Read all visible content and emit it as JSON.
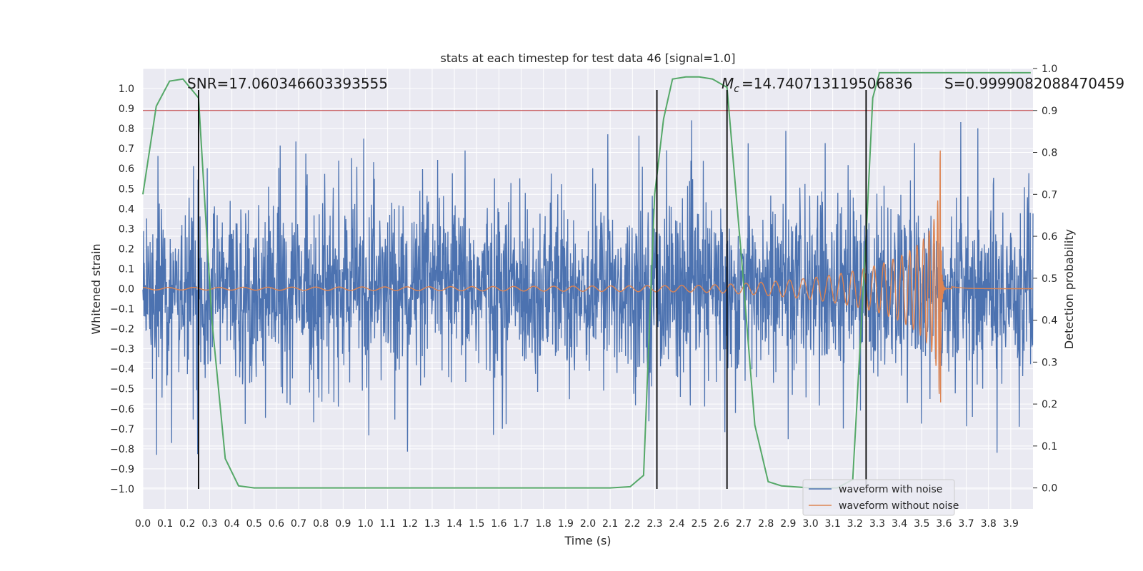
{
  "chart_data": {
    "type": "line",
    "title": "stats at each timestep for test data 46 [signal=1.0]",
    "xlabel": "Time (s)",
    "ylabel_left": "Whitened strain",
    "ylabel_right": "Detection probability",
    "xlim": [
      0.0,
      4.0
    ],
    "ylim_left": [
      -1.1,
      1.1
    ],
    "ylim_right": [
      -0.05,
      1.0
    ],
    "grid": true,
    "x_ticks": [
      "0.0",
      "0.1",
      "0.2",
      "0.3",
      "0.4",
      "0.5",
      "0.6",
      "0.7",
      "0.8",
      "0.9",
      "1.0",
      "1.1",
      "1.2",
      "1.3",
      "1.4",
      "1.5",
      "1.6",
      "1.7",
      "1.8",
      "1.9",
      "2.0",
      "2.1",
      "2.2",
      "2.3",
      "2.4",
      "2.5",
      "2.6",
      "2.7",
      "2.8",
      "2.9",
      "3.0",
      "3.1",
      "3.2",
      "3.3",
      "3.4",
      "3.5",
      "3.6",
      "3.7",
      "3.8",
      "3.9"
    ],
    "y_left_ticks": [
      "1.0",
      "0.9",
      "0.8",
      "0.7",
      "0.6",
      "0.5",
      "0.4",
      "0.3",
      "0.2",
      "0.1",
      "0.0",
      "−0.1",
      "−0.2",
      "−0.3",
      "−0.4",
      "−0.5",
      "−0.6",
      "−0.7",
      "−0.8",
      "−0.9",
      "−1.0"
    ],
    "y_right_ticks": [
      "1.0",
      "0.9",
      "0.8",
      "0.7",
      "0.6",
      "0.5",
      "0.4",
      "0.3",
      "0.2",
      "0.1",
      "0.0"
    ],
    "annotations": {
      "snr": "SNR=17.060346603393555",
      "mc": "=14.740713119506836",
      "s": "S=0.9999082088470459"
    },
    "threshold": {
      "y_right": 0.9,
      "color": "#c44e52"
    },
    "event_lines_x": [
      0.25,
      2.31,
      2.625,
      3.25
    ],
    "series": [
      {
        "name": "waveform with noise",
        "color": "#4c72b0",
        "kind": "noise",
        "seed": 46
      },
      {
        "name": "waveform without noise",
        "color": "#dd8452",
        "kind": "chirp",
        "merger_x": 3.57
      },
      {
        "color": "#55a868",
        "axis": "right",
        "x": [
          0.0,
          0.06,
          0.12,
          0.18,
          0.25,
          0.31,
          0.37,
          0.43,
          0.5,
          0.6,
          0.9,
          1.2,
          1.5,
          1.8,
          2.1,
          2.19,
          2.25,
          2.3,
          2.34,
          2.38,
          2.44,
          2.5,
          2.56,
          2.625,
          2.69,
          2.75,
          2.81,
          2.87,
          3.0,
          3.12,
          3.19,
          3.25,
          3.28,
          3.31,
          3.37,
          3.5,
          3.7,
          3.99
        ],
        "y": [
          0.7,
          0.91,
          0.97,
          0.975,
          0.93,
          0.4,
          0.07,
          0.005,
          0.0,
          0.0,
          0.0,
          0.0,
          0.0,
          0.0,
          0.0,
          0.003,
          0.03,
          0.7,
          0.88,
          0.975,
          0.98,
          0.98,
          0.975,
          0.955,
          0.55,
          0.15,
          0.015,
          0.005,
          0.0,
          0.0,
          0.02,
          0.6,
          0.93,
          0.99,
          0.99,
          0.99,
          0.99,
          0.99
        ]
      }
    ]
  }
}
